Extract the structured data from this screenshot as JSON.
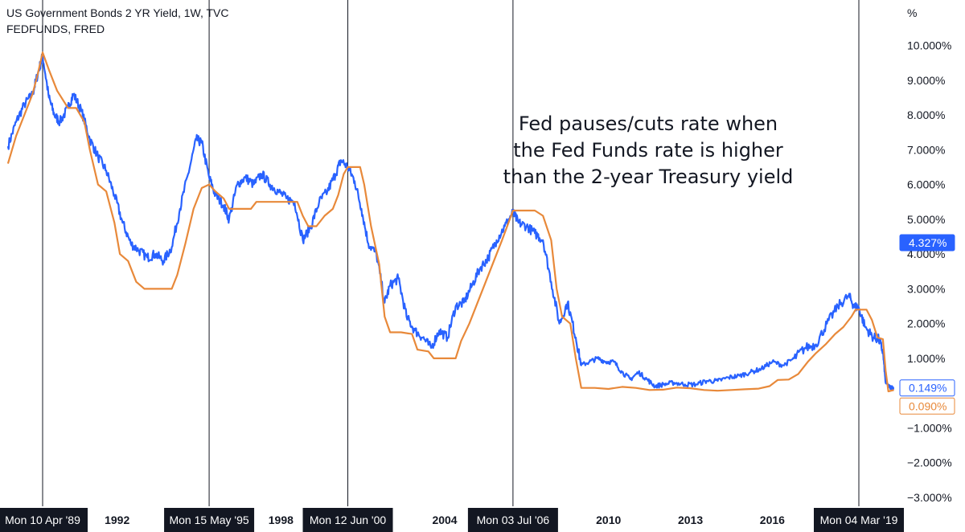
{
  "chart_data": {
    "type": "line",
    "legend": [
      "US Government Bonds 2 YR Yield, 1W, TVC",
      "FEDFUNDS, FRED"
    ],
    "yaxis_unit": "%",
    "ylim": [
      -3.3,
      10.6
    ],
    "xlim": [
      1987.9,
      2020.5
    ],
    "yticks": [
      "10.000%",
      "9.000%",
      "8.000%",
      "7.000%",
      "6.000%",
      "5.000%",
      "4.000%",
      "3.000%",
      "2.000%",
      "1.000%",
      "",
      "−1.000%",
      "−2.000%",
      "−3.000%"
    ],
    "ytick_values": [
      10,
      9,
      8,
      7,
      6,
      5,
      4,
      3,
      2,
      1,
      0,
      -1,
      -2,
      -3
    ],
    "xticks": [
      {
        "label": "1992",
        "x": 1992.0
      },
      {
        "label": "1998",
        "x": 1998.0
      },
      {
        "label": "2004",
        "x": 2004.0
      },
      {
        "label": "2010",
        "x": 2010.0
      },
      {
        "label": "2013",
        "x": 2013.0
      },
      {
        "label": "2016",
        "x": 2016.0
      }
    ],
    "markers": [
      {
        "label": "Mon 10 Apr '89",
        "x": 1989.27
      },
      {
        "label": "Mon 15 May '95",
        "x": 1995.37
      },
      {
        "label": "Mon 12 Jun '00",
        "x": 2000.45
      },
      {
        "label": "Mon 03 Jul '06",
        "x": 2006.5
      },
      {
        "label": "Mon 04 Mar '19",
        "x": 2019.17
      }
    ],
    "annotation": [
      "Fed pauses/cuts rate when",
      "the Fed Funds rate is higher",
      "than the 2-year Treasury yield"
    ],
    "series": [
      {
        "color": "#2962ff",
        "last_value_label": "4.327%",
        "last_value": 4.327,
        "current_label": "0.149%",
        "current_value": 0.149,
        "points": [
          [
            1988.0,
            7.1
          ],
          [
            1988.3,
            7.8
          ],
          [
            1988.6,
            8.3
          ],
          [
            1988.9,
            8.6
          ],
          [
            1989.1,
            9.2
          ],
          [
            1989.27,
            9.7
          ],
          [
            1989.5,
            8.5
          ],
          [
            1989.7,
            8.0
          ],
          [
            1989.9,
            7.8
          ],
          [
            1990.2,
            8.2
          ],
          [
            1990.4,
            8.6
          ],
          [
            1990.7,
            8.1
          ],
          [
            1991.0,
            7.3
          ],
          [
            1991.3,
            6.8
          ],
          [
            1991.6,
            6.4
          ],
          [
            1991.9,
            5.7
          ],
          [
            1992.2,
            4.9
          ],
          [
            1992.5,
            4.3
          ],
          [
            1992.8,
            4.1
          ],
          [
            1993.1,
            3.9
          ],
          [
            1993.4,
            4.0
          ],
          [
            1993.7,
            3.8
          ],
          [
            1994.0,
            4.2
          ],
          [
            1994.3,
            5.3
          ],
          [
            1994.6,
            6.3
          ],
          [
            1994.9,
            7.3
          ],
          [
            1995.1,
            7.2
          ],
          [
            1995.37,
            6.2
          ],
          [
            1995.6,
            5.7
          ],
          [
            1995.9,
            5.4
          ],
          [
            1996.1,
            5.0
          ],
          [
            1996.4,
            6.0
          ],
          [
            1996.7,
            6.2
          ],
          [
            1997.0,
            6.0
          ],
          [
            1997.3,
            6.3
          ],
          [
            1997.6,
            6.0
          ],
          [
            1997.9,
            5.8
          ],
          [
            1998.2,
            5.6
          ],
          [
            1998.5,
            5.5
          ],
          [
            1998.8,
            4.4
          ],
          [
            1999.1,
            4.8
          ],
          [
            1999.4,
            5.5
          ],
          [
            1999.7,
            5.8
          ],
          [
            2000.0,
            6.3
          ],
          [
            2000.2,
            6.7
          ],
          [
            2000.45,
            6.5
          ],
          [
            2000.7,
            6.1
          ],
          [
            2000.95,
            5.3
          ],
          [
            2001.2,
            4.3
          ],
          [
            2001.5,
            4.0
          ],
          [
            2001.8,
            2.6
          ],
          [
            2002.0,
            3.1
          ],
          [
            2002.3,
            3.3
          ],
          [
            2002.6,
            2.2
          ],
          [
            2002.9,
            1.8
          ],
          [
            2003.2,
            1.6
          ],
          [
            2003.5,
            1.3
          ],
          [
            2003.8,
            1.8
          ],
          [
            2004.1,
            1.6
          ],
          [
            2004.4,
            2.5
          ],
          [
            2004.7,
            2.6
          ],
          [
            2005.0,
            3.1
          ],
          [
            2005.3,
            3.6
          ],
          [
            2005.6,
            3.9
          ],
          [
            2005.9,
            4.4
          ],
          [
            2006.2,
            4.8
          ],
          [
            2006.5,
            5.2
          ],
          [
            2006.7,
            4.9
          ],
          [
            2007.0,
            4.8
          ],
          [
            2007.3,
            4.6
          ],
          [
            2007.6,
            4.4
          ],
          [
            2007.9,
            3.2
          ],
          [
            2008.2,
            2.0
          ],
          [
            2008.5,
            2.6
          ],
          [
            2008.8,
            1.6
          ],
          [
            2009.0,
            0.8
          ],
          [
            2009.3,
            0.9
          ],
          [
            2009.6,
            1.0
          ],
          [
            2009.9,
            0.9
          ],
          [
            2010.2,
            0.9
          ],
          [
            2010.5,
            0.6
          ],
          [
            2010.8,
            0.4
          ],
          [
            2011.1,
            0.6
          ],
          [
            2011.4,
            0.4
          ],
          [
            2011.7,
            0.2
          ],
          [
            2012.0,
            0.25
          ],
          [
            2012.4,
            0.3
          ],
          [
            2012.8,
            0.25
          ],
          [
            2013.2,
            0.25
          ],
          [
            2013.6,
            0.35
          ],
          [
            2014.0,
            0.35
          ],
          [
            2014.4,
            0.45
          ],
          [
            2014.8,
            0.5
          ],
          [
            2015.2,
            0.6
          ],
          [
            2015.6,
            0.7
          ],
          [
            2016.0,
            0.9
          ],
          [
            2016.4,
            0.8
          ],
          [
            2016.8,
            1.0
          ],
          [
            2017.2,
            1.3
          ],
          [
            2017.6,
            1.4
          ],
          [
            2018.0,
            2.0
          ],
          [
            2018.4,
            2.5
          ],
          [
            2018.8,
            2.8
          ],
          [
            2019.0,
            2.5
          ],
          [
            2019.17,
            2.45
          ],
          [
            2019.4,
            1.9
          ],
          [
            2019.7,
            1.6
          ],
          [
            2019.9,
            1.55
          ],
          [
            2020.05,
            1.2
          ],
          [
            2020.15,
            0.3
          ],
          [
            2020.3,
            0.16
          ],
          [
            2020.45,
            0.149
          ]
        ]
      },
      {
        "color": "#e8893a",
        "current_label": "0.090%",
        "current_value": 0.09,
        "points": [
          [
            1988.0,
            6.6
          ],
          [
            1988.3,
            7.4
          ],
          [
            1988.6,
            8.0
          ],
          [
            1988.9,
            8.6
          ],
          [
            1989.1,
            9.2
          ],
          [
            1989.27,
            9.8
          ],
          [
            1989.5,
            9.3
          ],
          [
            1989.8,
            8.7
          ],
          [
            1990.2,
            8.2
          ],
          [
            1990.5,
            8.2
          ],
          [
            1990.8,
            7.8
          ],
          [
            1991.0,
            7.0
          ],
          [
            1991.3,
            6.0
          ],
          [
            1991.6,
            5.8
          ],
          [
            1991.9,
            4.9
          ],
          [
            1992.1,
            4.0
          ],
          [
            1992.4,
            3.8
          ],
          [
            1992.7,
            3.2
          ],
          [
            1993.0,
            3.0
          ],
          [
            1993.4,
            3.0
          ],
          [
            1993.7,
            3.0
          ],
          [
            1994.0,
            3.0
          ],
          [
            1994.2,
            3.4
          ],
          [
            1994.5,
            4.3
          ],
          [
            1994.8,
            5.3
          ],
          [
            1995.1,
            5.9
          ],
          [
            1995.37,
            6.0
          ],
          [
            1995.6,
            5.8
          ],
          [
            1995.9,
            5.6
          ],
          [
            1996.1,
            5.3
          ],
          [
            1996.5,
            5.3
          ],
          [
            1996.9,
            5.3
          ],
          [
            1997.1,
            5.5
          ],
          [
            1997.5,
            5.5
          ],
          [
            1997.9,
            5.5
          ],
          [
            1998.3,
            5.5
          ],
          [
            1998.6,
            5.5
          ],
          [
            1998.8,
            5.1
          ],
          [
            1999.0,
            4.8
          ],
          [
            1999.3,
            4.8
          ],
          [
            1999.6,
            5.1
          ],
          [
            1999.9,
            5.3
          ],
          [
            2000.1,
            5.7
          ],
          [
            2000.3,
            6.3
          ],
          [
            2000.45,
            6.5
          ],
          [
            2000.7,
            6.5
          ],
          [
            2000.9,
            6.5
          ],
          [
            2001.05,
            6.0
          ],
          [
            2001.3,
            4.8
          ],
          [
            2001.6,
            3.7
          ],
          [
            2001.8,
            2.2
          ],
          [
            2002.0,
            1.75
          ],
          [
            2002.4,
            1.75
          ],
          [
            2002.8,
            1.7
          ],
          [
            2003.0,
            1.25
          ],
          [
            2003.4,
            1.2
          ],
          [
            2003.6,
            1.0
          ],
          [
            2004.0,
            1.0
          ],
          [
            2004.4,
            1.0
          ],
          [
            2004.6,
            1.5
          ],
          [
            2004.9,
            2.0
          ],
          [
            2005.2,
            2.6
          ],
          [
            2005.5,
            3.2
          ],
          [
            2005.8,
            3.8
          ],
          [
            2006.1,
            4.4
          ],
          [
            2006.5,
            5.25
          ],
          [
            2006.9,
            5.25
          ],
          [
            2007.3,
            5.25
          ],
          [
            2007.6,
            5.1
          ],
          [
            2007.9,
            4.4
          ],
          [
            2008.1,
            3.0
          ],
          [
            2008.3,
            2.2
          ],
          [
            2008.6,
            2.0
          ],
          [
            2008.8,
            1.0
          ],
          [
            2009.0,
            0.15
          ],
          [
            2009.5,
            0.15
          ],
          [
            2010.0,
            0.12
          ],
          [
            2010.5,
            0.18
          ],
          [
            2011.0,
            0.15
          ],
          [
            2011.5,
            0.09
          ],
          [
            2012.0,
            0.1
          ],
          [
            2012.5,
            0.16
          ],
          [
            2013.0,
            0.14
          ],
          [
            2013.5,
            0.09
          ],
          [
            2014.0,
            0.07
          ],
          [
            2014.5,
            0.09
          ],
          [
            2015.0,
            0.11
          ],
          [
            2015.5,
            0.13
          ],
          [
            2015.9,
            0.2
          ],
          [
            2016.2,
            0.38
          ],
          [
            2016.6,
            0.39
          ],
          [
            2016.95,
            0.55
          ],
          [
            2017.3,
            0.9
          ],
          [
            2017.6,
            1.15
          ],
          [
            2017.95,
            1.4
          ],
          [
            2018.3,
            1.7
          ],
          [
            2018.6,
            1.9
          ],
          [
            2018.9,
            2.2
          ],
          [
            2019.05,
            2.4
          ],
          [
            2019.17,
            2.4
          ],
          [
            2019.45,
            2.4
          ],
          [
            2019.65,
            2.1
          ],
          [
            2019.85,
            1.6
          ],
          [
            2020.05,
            1.55
          ],
          [
            2020.15,
            0.65
          ],
          [
            2020.25,
            0.05
          ],
          [
            2020.45,
            0.09
          ]
        ]
      }
    ]
  }
}
